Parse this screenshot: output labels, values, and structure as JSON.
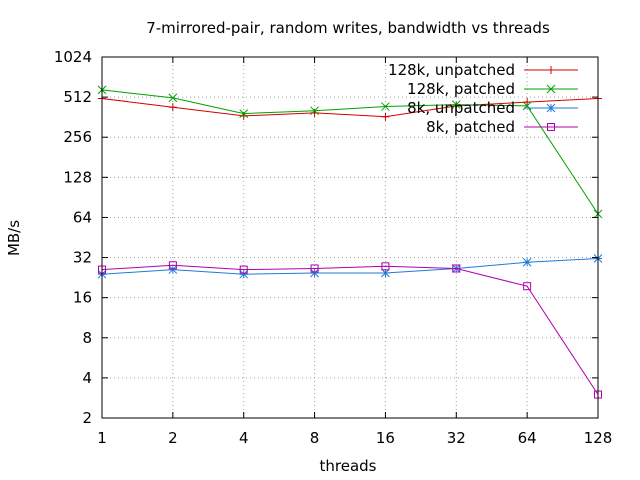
{
  "chart_data": {
    "type": "line",
    "title": "7-mirrored-pair, random writes, bandwidth vs threads",
    "xlabel": "threads",
    "ylabel": "MB/s",
    "x_scale": "log2",
    "y_scale": "log2",
    "x": [
      1,
      2,
      4,
      8,
      16,
      32,
      64,
      128
    ],
    "x_tick_labels": [
      "1",
      "2",
      "4",
      "8",
      "16",
      "32",
      "64",
      "128"
    ],
    "y_tick_labels": [
      "2",
      "4",
      "8",
      "16",
      "32",
      "64",
      "128",
      "256",
      "512",
      "1024"
    ],
    "xlim": [
      1,
      128
    ],
    "ylim": [
      2,
      1024
    ],
    "grid": true,
    "legend_position": "top-right",
    "series": [
      {
        "name": "128k, unpatched",
        "color": "#d40000",
        "marker": "plus",
        "values": [
          500,
          430,
          370,
          390,
          365,
          440,
          470,
          500
        ]
      },
      {
        "name": "128k, patched",
        "color": "#00a000",
        "marker": "cross",
        "values": [
          580,
          505,
          385,
          405,
          435,
          450,
          440,
          68
        ]
      },
      {
        "name": "8k, unpatched",
        "color": "#1e7bd8",
        "marker": "star",
        "values": [
          24,
          26,
          24,
          24.5,
          24.5,
          26.5,
          29.5,
          31.5
        ]
      },
      {
        "name": "8k, patched",
        "color": "#b000b0",
        "marker": "square",
        "values": [
          26,
          28,
          26,
          26.5,
          27.5,
          26.5,
          19.5,
          3
        ]
      }
    ]
  }
}
